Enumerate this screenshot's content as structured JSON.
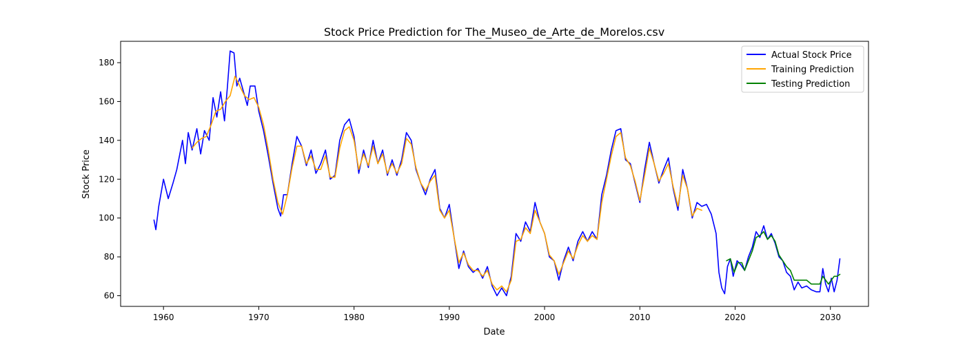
{
  "chart_data": {
    "type": "line",
    "title": "Stock Price Prediction for The_Museo_de_Arte_de_Morelos.csv",
    "xlabel": "Date",
    "ylabel": "Stock Price",
    "xlim": [
      1955.5,
      2034.0
    ],
    "ylim": [
      54.5,
      191.0
    ],
    "x_ticks": [
      1960,
      1970,
      1980,
      1990,
      2000,
      2010,
      2020,
      2030
    ],
    "y_ticks": [
      60,
      80,
      100,
      120,
      140,
      160,
      180
    ],
    "grid": false,
    "legend_position": "top-right",
    "series": [
      {
        "name": "Actual Stock Price",
        "color": "#0000ff",
        "points": [
          [
            1959.0,
            99
          ],
          [
            1959.2,
            94
          ],
          [
            1959.5,
            106
          ],
          [
            1960.0,
            120
          ],
          [
            1960.5,
            110
          ],
          [
            1961.0,
            118
          ],
          [
            1961.4,
            125
          ],
          [
            1962.0,
            140
          ],
          [
            1962.3,
            128
          ],
          [
            1962.6,
            144
          ],
          [
            1963.0,
            135
          ],
          [
            1963.5,
            146
          ],
          [
            1963.9,
            133
          ],
          [
            1964.3,
            145
          ],
          [
            1964.8,
            140
          ],
          [
            1965.2,
            162
          ],
          [
            1965.6,
            152
          ],
          [
            1966.0,
            165
          ],
          [
            1966.4,
            150
          ],
          [
            1966.7,
            167
          ],
          [
            1967.0,
            186
          ],
          [
            1967.4,
            185
          ],
          [
            1967.7,
            168
          ],
          [
            1968.0,
            172
          ],
          [
            1968.4,
            165
          ],
          [
            1968.8,
            158
          ],
          [
            1969.1,
            168
          ],
          [
            1969.6,
            168
          ],
          [
            1970.0,
            155
          ],
          [
            1970.5,
            145
          ],
          [
            1971.0,
            132
          ],
          [
            1971.5,
            118
          ],
          [
            1972.0,
            105
          ],
          [
            1972.3,
            101
          ],
          [
            1972.6,
            112
          ],
          [
            1973.0,
            112
          ],
          [
            1973.5,
            128
          ],
          [
            1974.0,
            142
          ],
          [
            1974.5,
            137
          ],
          [
            1975.0,
            127
          ],
          [
            1975.5,
            135
          ],
          [
            1976.0,
            123
          ],
          [
            1976.5,
            128
          ],
          [
            1977.0,
            135
          ],
          [
            1977.5,
            120
          ],
          [
            1978.0,
            122
          ],
          [
            1978.5,
            140
          ],
          [
            1979.0,
            148
          ],
          [
            1979.5,
            151
          ],
          [
            1980.0,
            142
          ],
          [
            1980.5,
            123
          ],
          [
            1981.0,
            135
          ],
          [
            1981.5,
            126
          ],
          [
            1982.0,
            140
          ],
          [
            1982.5,
            128
          ],
          [
            1983.0,
            135
          ],
          [
            1983.5,
            122
          ],
          [
            1984.0,
            130
          ],
          [
            1984.5,
            122
          ],
          [
            1985.0,
            130
          ],
          [
            1985.5,
            144
          ],
          [
            1986.0,
            140
          ],
          [
            1986.5,
            125
          ],
          [
            1987.0,
            118
          ],
          [
            1987.5,
            112
          ],
          [
            1988.0,
            120
          ],
          [
            1988.5,
            125
          ],
          [
            1989.0,
            105
          ],
          [
            1989.5,
            100
          ],
          [
            1990.0,
            107
          ],
          [
            1990.5,
            90
          ],
          [
            1991.0,
            74
          ],
          [
            1991.5,
            83
          ],
          [
            1992.0,
            75
          ],
          [
            1992.5,
            72
          ],
          [
            1993.0,
            74
          ],
          [
            1993.5,
            69
          ],
          [
            1994.0,
            75
          ],
          [
            1994.5,
            65
          ],
          [
            1995.0,
            60
          ],
          [
            1995.5,
            64
          ],
          [
            1996.0,
            60
          ],
          [
            1996.5,
            70
          ],
          [
            1997.0,
            92
          ],
          [
            1997.5,
            88
          ],
          [
            1998.0,
            98
          ],
          [
            1998.5,
            93
          ],
          [
            1999.0,
            108
          ],
          [
            1999.5,
            98
          ],
          [
            2000.0,
            92
          ],
          [
            2000.5,
            80
          ],
          [
            2001.0,
            78
          ],
          [
            2001.5,
            68
          ],
          [
            2002.0,
            78
          ],
          [
            2002.5,
            85
          ],
          [
            2003.0,
            78
          ],
          [
            2003.5,
            88
          ],
          [
            2004.0,
            93
          ],
          [
            2004.5,
            88
          ],
          [
            2005.0,
            93
          ],
          [
            2005.5,
            89
          ],
          [
            2006.0,
            112
          ],
          [
            2006.5,
            122
          ],
          [
            2007.0,
            135
          ],
          [
            2007.5,
            145
          ],
          [
            2008.0,
            146
          ],
          [
            2008.5,
            130
          ],
          [
            2009.0,
            128
          ],
          [
            2009.5,
            118
          ],
          [
            2010.0,
            108
          ],
          [
            2010.5,
            125
          ],
          [
            2011.0,
            139
          ],
          [
            2011.5,
            128
          ],
          [
            2012.0,
            118
          ],
          [
            2012.5,
            125
          ],
          [
            2013.0,
            131
          ],
          [
            2013.5,
            115
          ],
          [
            2014.0,
            104
          ],
          [
            2014.5,
            125
          ],
          [
            2015.0,
            115
          ],
          [
            2015.5,
            100
          ],
          [
            2016.0,
            108
          ],
          [
            2016.5,
            106
          ],
          [
            2017.0,
            107
          ],
          [
            2017.5,
            102
          ],
          [
            2018.0,
            92
          ],
          [
            2018.3,
            72
          ],
          [
            2018.6,
            64
          ],
          [
            2018.9,
            61
          ],
          [
            2019.2,
            75
          ],
          [
            2019.5,
            79
          ],
          [
            2019.8,
            70
          ],
          [
            2020.2,
            78
          ],
          [
            2020.6,
            76
          ],
          [
            2021.0,
            73
          ],
          [
            2021.4,
            80
          ],
          [
            2021.8,
            85
          ],
          [
            2022.2,
            93
          ],
          [
            2022.6,
            90
          ],
          [
            2023.0,
            96
          ],
          [
            2023.4,
            89
          ],
          [
            2023.8,
            92
          ],
          [
            2024.2,
            87
          ],
          [
            2024.6,
            80
          ],
          [
            2025.0,
            78
          ],
          [
            2025.4,
            72
          ],
          [
            2025.8,
            70
          ],
          [
            2026.2,
            63
          ],
          [
            2026.6,
            67
          ],
          [
            2027.0,
            64
          ],
          [
            2027.5,
            65
          ],
          [
            2028.0,
            63
          ],
          [
            2028.5,
            62
          ],
          [
            2028.9,
            62
          ],
          [
            2029.2,
            74
          ],
          [
            2029.5,
            66
          ],
          [
            2029.8,
            62
          ],
          [
            2030.1,
            69
          ],
          [
            2030.4,
            62
          ],
          [
            2030.7,
            68
          ],
          [
            2031.0,
            79
          ]
        ]
      },
      {
        "name": "Training Prediction",
        "color": "#ffa500",
        "points": [
          [
            1963.0,
            136
          ],
          [
            1963.5,
            139
          ],
          [
            1964.0,
            141
          ],
          [
            1964.5,
            142
          ],
          [
            1965.0,
            148
          ],
          [
            1965.5,
            155
          ],
          [
            1966.0,
            156
          ],
          [
            1966.5,
            160
          ],
          [
            1967.0,
            163
          ],
          [
            1967.5,
            173
          ],
          [
            1968.0,
            168
          ],
          [
            1968.5,
            163
          ],
          [
            1969.0,
            161
          ],
          [
            1969.5,
            162
          ],
          [
            1970.0,
            157
          ],
          [
            1970.5,
            148
          ],
          [
            1971.0,
            135
          ],
          [
            1971.5,
            120
          ],
          [
            1972.0,
            108
          ],
          [
            1972.5,
            102
          ],
          [
            1973.0,
            112
          ],
          [
            1973.5,
            126
          ],
          [
            1974.0,
            137
          ],
          [
            1974.5,
            137
          ],
          [
            1975.0,
            128
          ],
          [
            1975.5,
            132
          ],
          [
            1976.0,
            125
          ],
          [
            1976.5,
            125
          ],
          [
            1977.0,
            132
          ],
          [
            1977.5,
            121
          ],
          [
            1978.0,
            121
          ],
          [
            1978.5,
            136
          ],
          [
            1979.0,
            145
          ],
          [
            1979.5,
            147
          ],
          [
            1980.0,
            140
          ],
          [
            1980.5,
            125
          ],
          [
            1981.0,
            133
          ],
          [
            1981.5,
            127
          ],
          [
            1982.0,
            137
          ],
          [
            1982.5,
            128
          ],
          [
            1983.0,
            133
          ],
          [
            1983.5,
            123
          ],
          [
            1984.0,
            128
          ],
          [
            1984.5,
            123
          ],
          [
            1985.0,
            128
          ],
          [
            1985.5,
            141
          ],
          [
            1986.0,
            138
          ],
          [
            1986.5,
            126
          ],
          [
            1987.0,
            118
          ],
          [
            1987.5,
            114
          ],
          [
            1988.0,
            119
          ],
          [
            1988.5,
            122
          ],
          [
            1989.0,
            104
          ],
          [
            1989.5,
            100
          ],
          [
            1990.0,
            104
          ],
          [
            1990.5,
            90
          ],
          [
            1991.0,
            77
          ],
          [
            1991.5,
            82
          ],
          [
            1992.0,
            76
          ],
          [
            1992.5,
            73
          ],
          [
            1993.0,
            73
          ],
          [
            1993.5,
            70
          ],
          [
            1994.0,
            73
          ],
          [
            1994.5,
            66
          ],
          [
            1995.0,
            63
          ],
          [
            1995.5,
            65
          ],
          [
            1996.0,
            62
          ],
          [
            1996.5,
            68
          ],
          [
            1997.0,
            88
          ],
          [
            1997.5,
            89
          ],
          [
            1998.0,
            95
          ],
          [
            1998.5,
            92
          ],
          [
            1999.0,
            104
          ],
          [
            1999.5,
            98
          ],
          [
            2000.0,
            92
          ],
          [
            2000.5,
            81
          ],
          [
            2001.0,
            78
          ],
          [
            2001.5,
            71
          ],
          [
            2002.0,
            77
          ],
          [
            2002.5,
            83
          ],
          [
            2003.0,
            79
          ],
          [
            2003.5,
            86
          ],
          [
            2004.0,
            91
          ],
          [
            2004.5,
            88
          ],
          [
            2005.0,
            91
          ],
          [
            2005.5,
            89
          ],
          [
            2006.0,
            108
          ],
          [
            2006.5,
            120
          ],
          [
            2007.0,
            132
          ],
          [
            2007.5,
            142
          ],
          [
            2008.0,
            144
          ],
          [
            2008.5,
            131
          ],
          [
            2009.0,
            127
          ],
          [
            2009.5,
            119
          ],
          [
            2010.0,
            109
          ],
          [
            2010.5,
            122
          ],
          [
            2011.0,
            136
          ],
          [
            2011.5,
            128
          ],
          [
            2012.0,
            119
          ],
          [
            2012.5,
            123
          ],
          [
            2013.0,
            128
          ],
          [
            2013.5,
            116
          ],
          [
            2014.0,
            106
          ],
          [
            2014.5,
            122
          ],
          [
            2015.0,
            115
          ],
          [
            2015.5,
            101
          ],
          [
            2016.0,
            105
          ],
          [
            2016.5,
            104
          ]
        ]
      },
      {
        "name": "Testing Prediction",
        "color": "#008000",
        "points": [
          [
            2019.1,
            78
          ],
          [
            2019.5,
            79
          ],
          [
            2019.9,
            72
          ],
          [
            2020.3,
            77
          ],
          [
            2020.7,
            77
          ],
          [
            2021.0,
            73
          ],
          [
            2021.4,
            78
          ],
          [
            2021.8,
            83
          ],
          [
            2022.2,
            90
          ],
          [
            2022.6,
            91
          ],
          [
            2023.0,
            93
          ],
          [
            2023.4,
            89
          ],
          [
            2023.8,
            91
          ],
          [
            2024.2,
            88
          ],
          [
            2024.6,
            81
          ],
          [
            2025.0,
            78
          ],
          [
            2025.4,
            75
          ],
          [
            2025.8,
            73
          ],
          [
            2026.2,
            68
          ],
          [
            2026.6,
            68
          ],
          [
            2027.0,
            68
          ],
          [
            2027.5,
            68
          ],
          [
            2028.0,
            66
          ],
          [
            2028.5,
            66
          ],
          [
            2028.9,
            66
          ],
          [
            2029.2,
            70
          ],
          [
            2029.5,
            68
          ],
          [
            2029.8,
            66
          ],
          [
            2030.1,
            68
          ],
          [
            2030.4,
            70
          ],
          [
            2030.7,
            70
          ],
          [
            2031.0,
            71
          ]
        ]
      }
    ]
  }
}
